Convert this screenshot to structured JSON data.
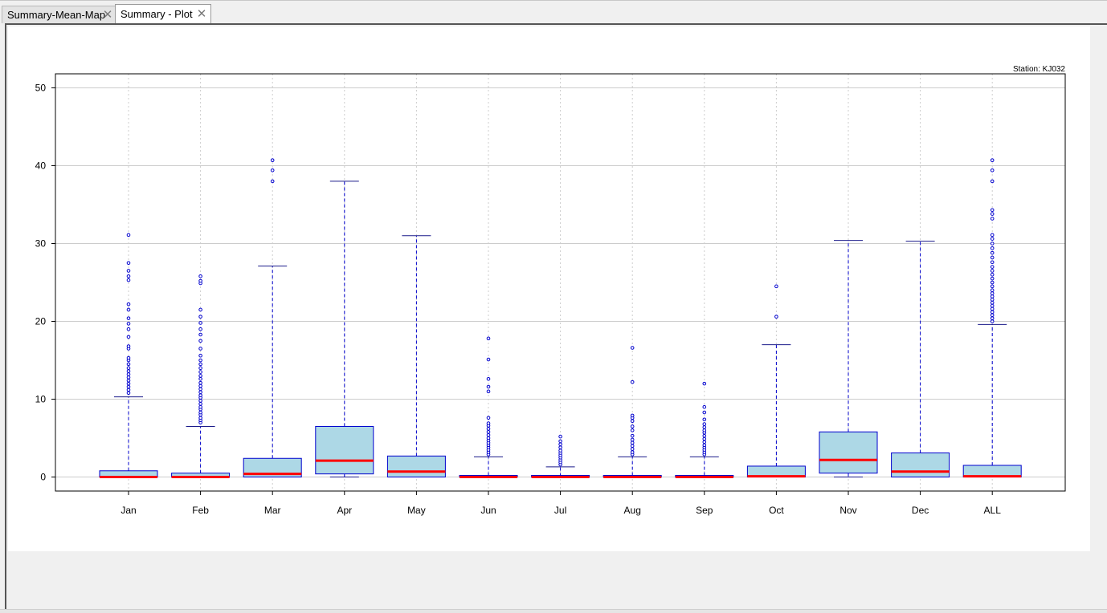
{
  "tabs": [
    {
      "label": "Summary-Mean-Map",
      "active": false
    },
    {
      "label": "Summary - Plot",
      "active": true
    }
  ],
  "colors": {
    "box_fill": "#add8e6",
    "box_border": "#0000cd",
    "median": "#ff0000",
    "whisker": "#0000cd",
    "outlier": "#0000cd",
    "grid": "#cccccc"
  },
  "chart_data": {
    "type": "box",
    "annotation": "Station: KJ032",
    "categories": [
      "Jan",
      "Feb",
      "Mar",
      "Apr",
      "May",
      "Jun",
      "Jul",
      "Aug",
      "Sep",
      "Oct",
      "Nov",
      "Dec",
      "ALL"
    ],
    "ylim": [
      -1.8,
      51.8
    ],
    "yticks": [
      0,
      10,
      20,
      30,
      40,
      50
    ],
    "grid": true,
    "boxes": [
      {
        "q1": 0,
        "median": 0,
        "q3": 0.8,
        "whisker_low": 0,
        "whisker_high": 10.3,
        "outliers": [
          10.8,
          11.2,
          11.6,
          12.0,
          12.4,
          12.8,
          13.2,
          13.6,
          14.0,
          14.5,
          15.0,
          15.3,
          16.5,
          16.8,
          18.0,
          19.0,
          19.7,
          20.4,
          21.5,
          22.2,
          25.3,
          25.8,
          26.5,
          27.5,
          31.1
        ]
      },
      {
        "q1": 0,
        "median": 0,
        "q3": 0.5,
        "whisker_low": 0,
        "whisker_high": 6.5,
        "outliers": [
          7.0,
          7.3,
          7.6,
          8.0,
          8.3,
          8.7,
          9.0,
          9.4,
          9.8,
          10.2,
          10.5,
          10.9,
          11.3,
          11.7,
          12.1,
          12.6,
          13.0,
          13.5,
          14.0,
          14.5,
          15.0,
          15.6,
          16.5,
          17.5,
          18.3,
          19.0,
          19.8,
          20.6,
          21.5,
          24.9,
          25.2,
          25.8
        ]
      },
      {
        "q1": 0,
        "median": 0.4,
        "q3": 2.4,
        "whisker_low": 0,
        "whisker_high": 27.1,
        "outliers": [
          38.0,
          39.4,
          40.7
        ]
      },
      {
        "q1": 0.4,
        "median": 2.1,
        "q3": 6.5,
        "whisker_low": 0,
        "whisker_high": 38.0,
        "outliers": []
      },
      {
        "q1": 0,
        "median": 0.7,
        "q3": 2.7,
        "whisker_low": 0,
        "whisker_high": 31.0,
        "outliers": []
      },
      {
        "q1": 0,
        "median": 0,
        "q3": 0.2,
        "whisker_low": 0,
        "whisker_high": 2.6,
        "outliers": [
          2.9,
          3.2,
          3.5,
          3.8,
          4.1,
          4.4,
          4.7,
          5.0,
          5.4,
          5.8,
          6.2,
          6.6,
          6.9,
          7.6,
          11.0,
          11.6,
          12.6,
          15.1,
          17.8
        ]
      },
      {
        "q1": 0,
        "median": 0,
        "q3": 0.1,
        "whisker_low": 0,
        "whisker_high": 1.3,
        "outliers": [
          1.6,
          1.9,
          2.2,
          2.5,
          2.8,
          3.1,
          3.4,
          3.8,
          4.2,
          4.6,
          5.2
        ]
      },
      {
        "q1": 0,
        "median": 0,
        "q3": 0.2,
        "whisker_low": 0,
        "whisker_high": 2.6,
        "outliers": [
          2.9,
          3.2,
          3.6,
          4.0,
          4.4,
          4.8,
          5.3,
          6.0,
          6.5,
          7.2,
          7.6,
          7.9,
          12.2,
          16.6
        ]
      },
      {
        "q1": 0,
        "median": 0,
        "q3": 0.2,
        "whisker_low": 0,
        "whisker_high": 2.6,
        "outliers": [
          2.9,
          3.2,
          3.5,
          3.8,
          4.1,
          4.5,
          4.9,
          5.3,
          5.7,
          6.0,
          6.4,
          6.8,
          7.4,
          8.3,
          9.0,
          12.0
        ]
      },
      {
        "q1": 0,
        "median": 0.1,
        "q3": 1.4,
        "whisker_low": 0,
        "whisker_high": 17.0,
        "outliers": [
          20.6,
          24.5
        ]
      },
      {
        "q1": 0.5,
        "median": 2.2,
        "q3": 5.8,
        "whisker_low": 0,
        "whisker_high": 30.4,
        "outliers": []
      },
      {
        "q1": 0,
        "median": 0.7,
        "q3": 3.1,
        "whisker_low": 0,
        "whisker_high": 30.3,
        "outliers": []
      },
      {
        "q1": 0,
        "median": 0.1,
        "q3": 1.5,
        "whisker_low": 0,
        "whisker_high": 19.6,
        "outliers": [
          20.0,
          20.4,
          20.8,
          21.2,
          21.6,
          22.0,
          22.4,
          22.8,
          23.2,
          23.6,
          24.0,
          24.5,
          25.0,
          25.5,
          26.0,
          26.5,
          27.0,
          27.6,
          28.2,
          28.8,
          29.4,
          30.0,
          30.6,
          31.1,
          33.2,
          33.8,
          34.3,
          38.0,
          39.4,
          40.7
        ]
      }
    ]
  }
}
